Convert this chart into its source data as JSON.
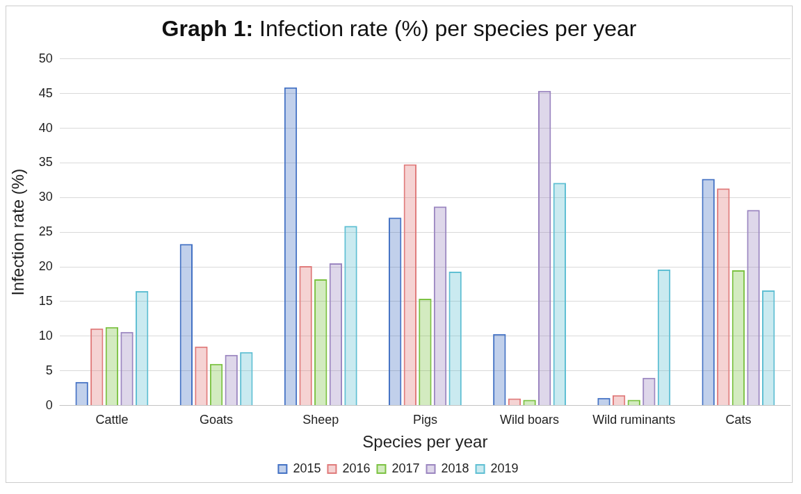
{
  "chart_data": {
    "type": "bar",
    "title": "Graph 1: Infection rate (%) per species per year",
    "xlabel": "Species per year",
    "ylabel": "Infection rate (%)",
    "categories": [
      "Cattle",
      "Goats",
      "Sheep",
      "Pigs",
      "Wild boars",
      "Wild ruminants",
      "Cats"
    ],
    "series": [
      {
        "name": "2015",
        "color": "#4472c4",
        "values": [
          3.4,
          23.3,
          45.9,
          27.1,
          10.3,
          1.1,
          32.7
        ]
      },
      {
        "name": "2016",
        "color": "#e07b7b",
        "values": [
          11.1,
          8.5,
          20.1,
          34.8,
          1.0,
          1.5,
          31.3
        ]
      },
      {
        "name": "2017",
        "color": "#7cc242",
        "values": [
          11.3,
          6.0,
          18.2,
          15.4,
          0.8,
          0.8,
          19.5
        ]
      },
      {
        "name": "2018",
        "color": "#9b86c0",
        "values": [
          10.6,
          7.3,
          20.5,
          28.7,
          45.4,
          4.0,
          28.2
        ]
      },
      {
        "name": "2019",
        "color": "#5fbfd3",
        "values": [
          16.5,
          7.7,
          25.9,
          19.3,
          32.1,
          19.6,
          16.6
        ]
      }
    ],
    "ylim": [
      0,
      50
    ],
    "yticks": [
      0,
      5,
      10,
      15,
      20,
      25,
      30,
      35,
      40,
      45,
      50
    ],
    "grid": "y",
    "legend": "bottom"
  }
}
